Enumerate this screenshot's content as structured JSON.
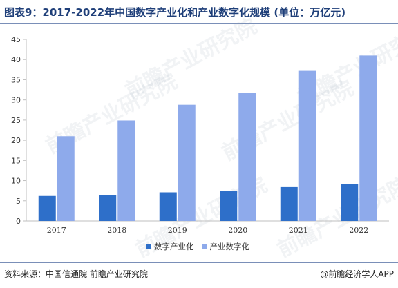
{
  "title": "图表9：2017-2022年中国数字产业化和产业数字化规模 (单位：万亿元)",
  "source": "资料来源：中国信通院 前瞻产业研究院",
  "brand": "@前瞻经济学人APP",
  "watermark": "前瞻产业研究院",
  "colors": {
    "series1": "#2e6fc9",
    "series2": "#8eaaeb",
    "title": "#1f3f79",
    "axis": "#bfbfbf"
  },
  "chart_data": {
    "type": "bar",
    "categories": [
      "2017",
      "2018",
      "2019",
      "2020",
      "2021",
      "2022"
    ],
    "series": [
      {
        "name": "数字产业化",
        "values": [
          6.2,
          6.4,
          7.1,
          7.5,
          8.4,
          9.2
        ]
      },
      {
        "name": "产业数字化",
        "values": [
          21.0,
          24.9,
          28.8,
          31.7,
          37.2,
          41.0
        ]
      }
    ],
    "yticks": [
      0,
      5,
      10,
      15,
      20,
      25,
      30,
      35,
      40,
      45
    ],
    "ylim": [
      0,
      45
    ],
    "grid": false,
    "legend": "bottom-center"
  }
}
